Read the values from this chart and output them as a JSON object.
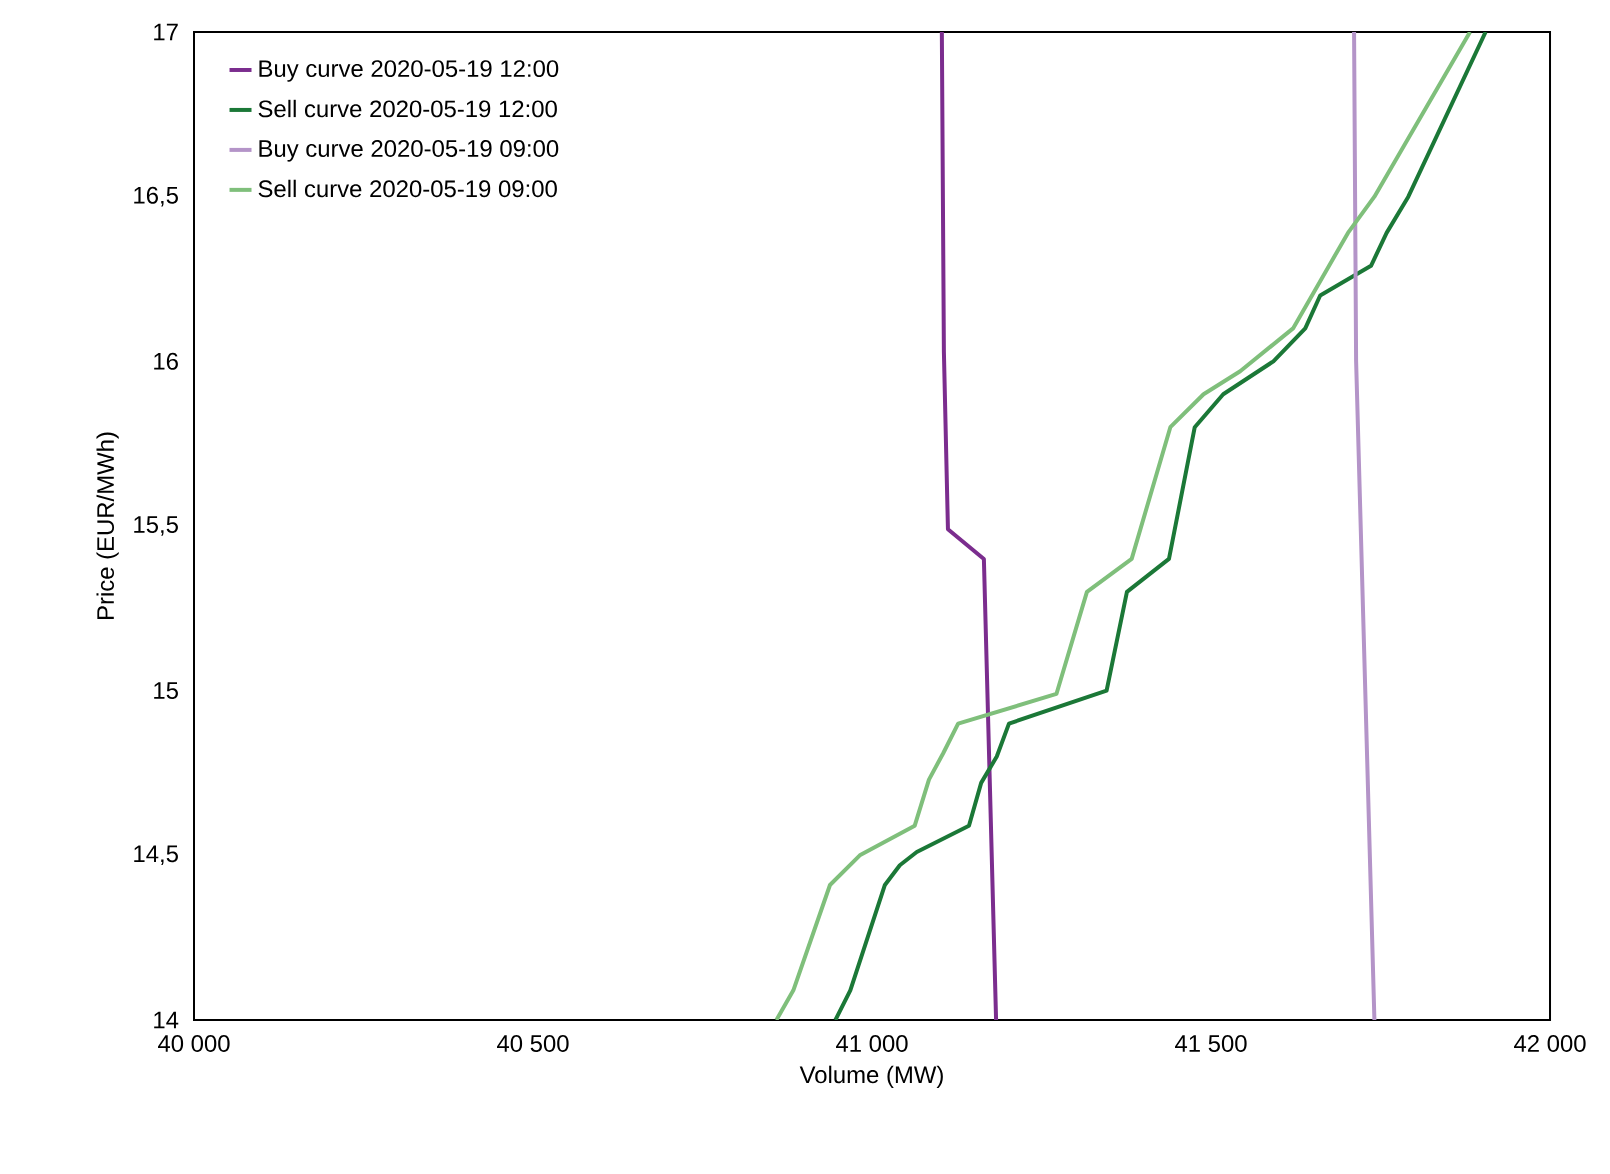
{
  "chart_data": {
    "type": "line",
    "xlabel": "Volume (MW)",
    "ylabel": "Price (EUR/MWh)",
    "xlim": [
      40000,
      42000
    ],
    "xticks": [
      {
        "value": 40000,
        "label": "40 000"
      },
      {
        "value": 40500,
        "label": "40 500"
      },
      {
        "value": 41000,
        "label": "41 000"
      },
      {
        "value": 41500,
        "label": "41 500"
      },
      {
        "value": 42000,
        "label": "42 000"
      }
    ],
    "ylim": [
      14,
      17
    ],
    "yticks": [
      14,
      {
        "value": 14.5,
        "label": "14,5"
      },
      15,
      {
        "value": 15.5,
        "label": "15,5"
      },
      16,
      {
        "value": 16.5,
        "label": "16,5"
      },
      17
    ],
    "legend": "top left",
    "grid": false,
    "series": [
      {
        "name": "Buy curve 2020-05-19 12:00",
        "color": "#7b2d8e",
        "x": [
          41103,
          41106,
          41112,
          41165,
          41183
        ],
        "values": [
          17,
          16.03,
          15.49,
          15.4,
          14
        ]
      },
      {
        "name": "Sell curve 2020-05-19 12:00",
        "color": "#1b7837",
        "x": [
          40946,
          40968,
          41019,
          41041,
          41066,
          41143,
          41161,
          41184,
          41202,
          41346,
          41376,
          41438,
          41476,
          41518,
          41592,
          41639,
          41661,
          41736,
          41759,
          41791,
          41905
        ],
        "values": [
          14,
          14.09,
          14.41,
          14.47,
          14.51,
          14.59,
          14.72,
          14.8,
          14.9,
          15.0,
          15.3,
          15.4,
          15.8,
          15.9,
          16.0,
          16.1,
          16.2,
          16.29,
          16.39,
          16.5,
          17
        ]
      },
      {
        "name": "Buy curve 2020-05-19 09:00",
        "color": "#b494c8",
        "x": [
          41711,
          41714,
          41741
        ],
        "values": [
          17,
          16.0,
          14
        ]
      },
      {
        "name": "Sell curve 2020-05-19 09:00",
        "color": "#7fbf7b",
        "x": [
          40859,
          40884,
          40938,
          40982,
          41063,
          41084,
          41105,
          41127,
          41272,
          41317,
          41383,
          41440,
          41489,
          41543,
          41621,
          41702,
          41741,
          41882
        ],
        "values": [
          14,
          14.09,
          14.41,
          14.5,
          14.59,
          14.73,
          14.81,
          14.9,
          14.99,
          15.3,
          15.4,
          15.8,
          15.9,
          15.97,
          16.1,
          16.39,
          16.5,
          17
        ]
      }
    ]
  }
}
